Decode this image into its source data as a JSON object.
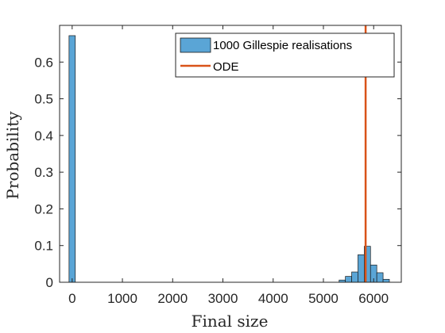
{
  "chart_data": {
    "type": "bar",
    "xlabel": "Final size",
    "ylabel": "Probability",
    "xlim": [
      -250,
      6550
    ],
    "ylim": [
      0,
      0.7
    ],
    "xticks": [
      0,
      1000,
      2000,
      3000,
      4000,
      5000,
      6000
    ],
    "yticks": [
      0,
      0.1,
      0.2,
      0.3,
      0.4,
      0.5,
      0.6
    ],
    "xtick_labels": [
      "0",
      "1000",
      "2000",
      "3000",
      "4000",
      "5000",
      "6000"
    ],
    "ytick_labels": [
      "0",
      "0.1",
      "0.2",
      "0.3",
      "0.4",
      "0.5",
      "0.6"
    ],
    "bin_width": 125,
    "grid": false,
    "legend_position": "top-right",
    "series": [
      {
        "name": "1000 Gillespie realisations",
        "kind": "histogram",
        "color": "#5aa5d6",
        "edge_color": "#1a1a1a",
        "bins": [
          {
            "x0": -62.5,
            "x1": 62.5,
            "value": 0.672
          },
          {
            "x0": 5312.5,
            "x1": 5437.5,
            "value": 0.006
          },
          {
            "x0": 5437.5,
            "x1": 5562.5,
            "value": 0.016
          },
          {
            "x0": 5562.5,
            "x1": 5687.5,
            "value": 0.028
          },
          {
            "x0": 5687.5,
            "x1": 5812.5,
            "value": 0.075
          },
          {
            "x0": 5812.5,
            "x1": 5937.5,
            "value": 0.098
          },
          {
            "x0": 5937.5,
            "x1": 6062.5,
            "value": 0.047
          },
          {
            "x0": 6062.5,
            "x1": 6187.5,
            "value": 0.026
          },
          {
            "x0": 6187.5,
            "x1": 6312.5,
            "value": 0.008
          }
        ]
      },
      {
        "name": "ODE",
        "kind": "vertical-line",
        "color": "#d95319",
        "x": 5840
      }
    ]
  }
}
